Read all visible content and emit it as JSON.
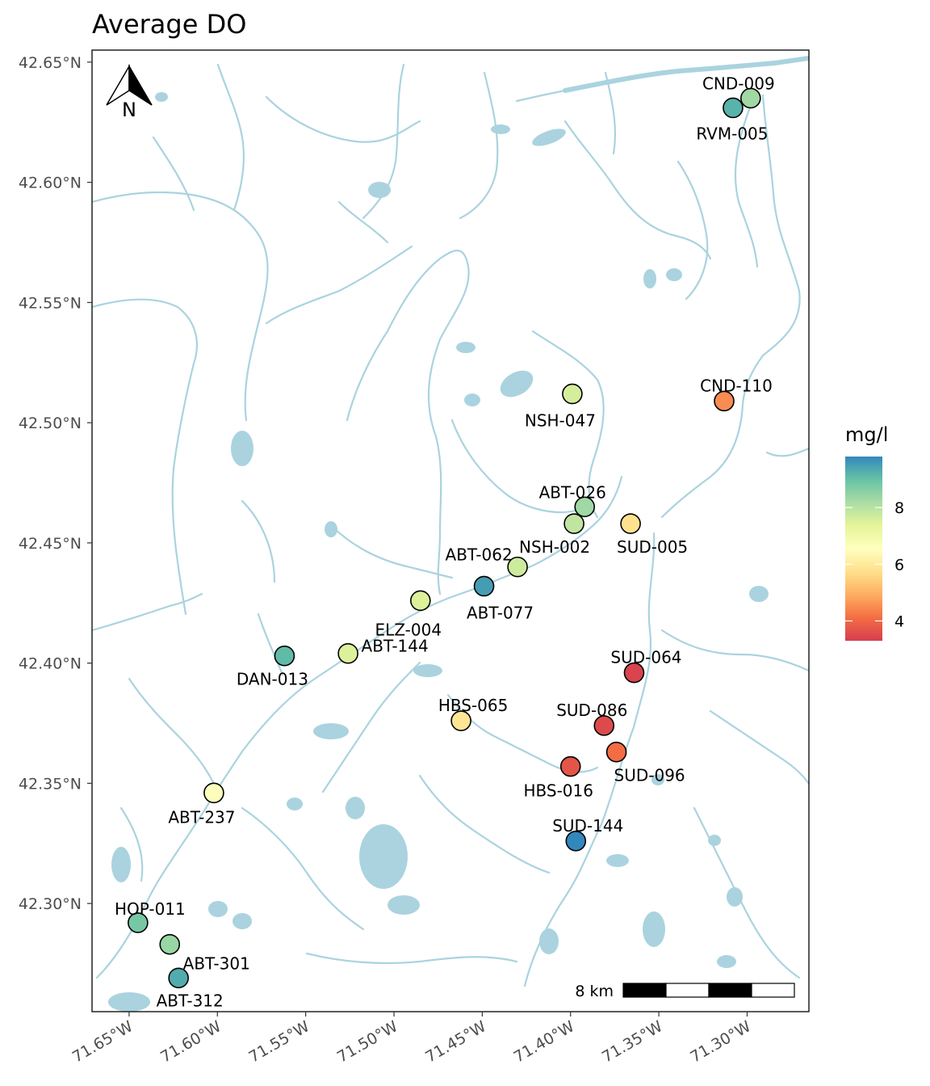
{
  "title": "Average DO",
  "north_arrow": {
    "label": "N",
    "icon": "north-arrow-icon"
  },
  "axes": {
    "y_ticks": [
      "42.30°N",
      "42.35°N",
      "42.40°N",
      "42.45°N",
      "42.50°N",
      "42.55°N",
      "42.60°N",
      "42.65°N"
    ],
    "x_ticks": [
      "71.65°W",
      "71.60°W",
      "71.55°W",
      "71.50°W",
      "71.45°W",
      "71.40°W",
      "71.35°W",
      "71.30°W"
    ]
  },
  "legend": {
    "title": "mg/l",
    "ticks": [
      "4",
      "6",
      "8"
    ],
    "colors": [
      "#d53e4f",
      "#f46d43",
      "#fdae61",
      "#fee08b",
      "#ffffbf",
      "#e6f598",
      "#abdda4",
      "#66c2a5",
      "#3288bd"
    ]
  },
  "scale_bar": {
    "label": "8 km"
  },
  "colors": {
    "water": "#aad3df",
    "frame": "#000000"
  },
  "chart_data": {
    "type": "scatter",
    "title": "Average DO",
    "xlabel": "",
    "ylabel": "",
    "xlim": [
      -71.671,
      -71.265
    ],
    "ylim": [
      42.255,
      42.655
    ],
    "color_scale": {
      "name": "mg/l",
      "min": 3.3,
      "max": 9.8,
      "palette": "Spectral"
    },
    "points": [
      {
        "site": "CND-009",
        "lon": -71.298,
        "lat": 42.635,
        "do": 8.3
      },
      {
        "site": "RVM-005",
        "lon": -71.308,
        "lat": 42.631,
        "do": 9.2
      },
      {
        "site": "CND-110",
        "lon": -71.313,
        "lat": 42.509,
        "do": 4.5
      },
      {
        "site": "NSH-047",
        "lon": -71.399,
        "lat": 42.512,
        "do": 7.6
      },
      {
        "site": "ABT-026",
        "lon": -71.392,
        "lat": 42.465,
        "do": 8.3
      },
      {
        "site": "NSH-002",
        "lon": -71.398,
        "lat": 42.458,
        "do": 7.9
      },
      {
        "site": "SUD-005",
        "lon": -71.366,
        "lat": 42.458,
        "do": 5.8
      },
      {
        "site": "ABT-062",
        "lon": -71.43,
        "lat": 42.44,
        "do": 7.7
      },
      {
        "site": "ABT-077",
        "lon": -71.449,
        "lat": 42.432,
        "do": 9.5
      },
      {
        "site": "ELZ-004",
        "lon": -71.485,
        "lat": 42.426,
        "do": 7.5
      },
      {
        "site": "ABT-144",
        "lon": -71.526,
        "lat": 42.404,
        "do": 7.5
      },
      {
        "site": "DAN-013",
        "lon": -71.562,
        "lat": 42.403,
        "do": 9.1
      },
      {
        "site": "SUD-064",
        "lon": -71.364,
        "lat": 42.396,
        "do": 3.4
      },
      {
        "site": "HBS-065",
        "lon": -71.462,
        "lat": 42.376,
        "do": 5.9
      },
      {
        "site": "SUD-086",
        "lon": -71.381,
        "lat": 42.374,
        "do": 3.5
      },
      {
        "site": "SUD-096",
        "lon": -71.374,
        "lat": 42.363,
        "do": 4.1
      },
      {
        "site": "HBS-016",
        "lon": -71.4,
        "lat": 42.357,
        "do": 3.7
      },
      {
        "site": "ABT-237",
        "lon": -71.602,
        "lat": 42.346,
        "do": 6.6
      },
      {
        "site": "SUD-144",
        "lon": -71.397,
        "lat": 42.326,
        "do": 9.8
      },
      {
        "site": "HOP-011",
        "lon": -71.645,
        "lat": 42.292,
        "do": 8.8
      },
      {
        "site": "ABT-301",
        "lon": -71.627,
        "lat": 42.283,
        "do": 8.4
      },
      {
        "site": "ABT-312",
        "lon": -71.622,
        "lat": 42.269,
        "do": 9.3
      }
    ]
  }
}
